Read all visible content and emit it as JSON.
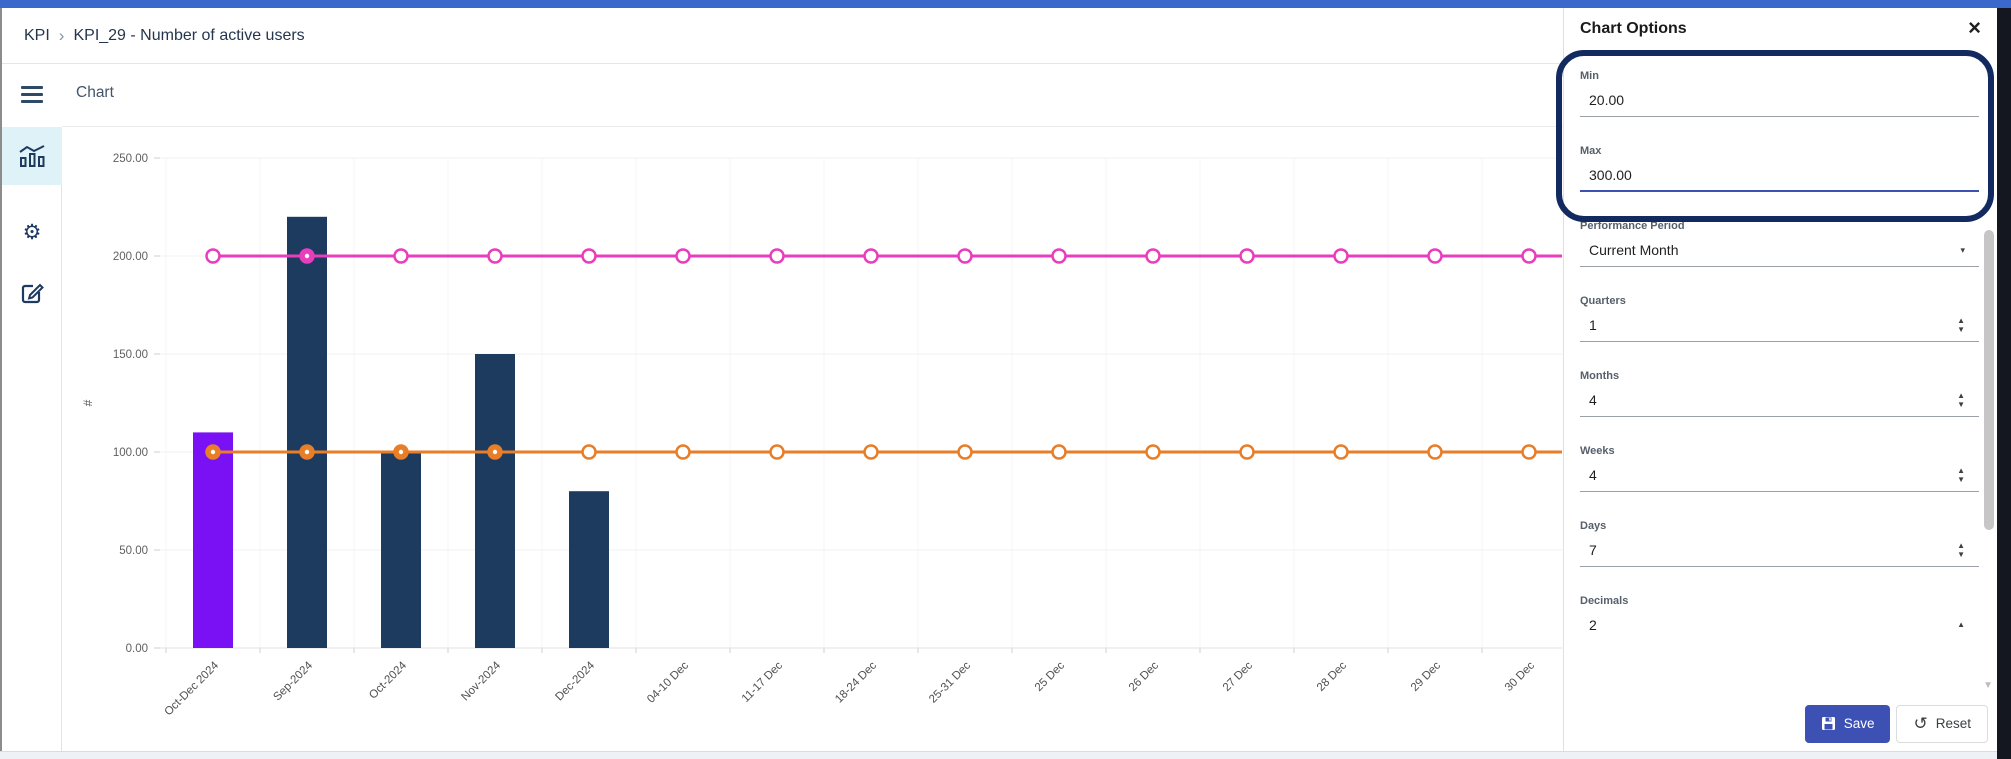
{
  "colors": {
    "top_bar": "#3a68cb",
    "accent": "#3d51b5",
    "bar": "#1d3a5f",
    "bar_highlight": "#7a10f4",
    "line_pink": "#e83dbc",
    "line_orange": "#e87e28",
    "annotation": "#132a60",
    "active_item_bg": "#def2f8"
  },
  "breadcrumb": {
    "root": "KPI",
    "separator": "›",
    "current": "KPI_29 - Number of active users"
  },
  "toolbar": {
    "title": "Chart"
  },
  "panel": {
    "title": "Chart Options",
    "close_glyph": "×",
    "fields": {
      "min": {
        "label": "Min",
        "value": "20.00"
      },
      "max": {
        "label": "Max",
        "value": "300.00"
      },
      "performance_period": {
        "label": "Performance Period",
        "value": "Current Month",
        "caret": "▾"
      },
      "quarters": {
        "label": "Quarters",
        "value": "1"
      },
      "months": {
        "label": "Months",
        "value": "4"
      },
      "weeks": {
        "label": "Weeks",
        "value": "4"
      },
      "days": {
        "label": "Days",
        "value": "7"
      },
      "decimals": {
        "label": "Decimals",
        "value": "2"
      }
    },
    "spinner": {
      "up": "▲",
      "down": "▼"
    },
    "buttons": {
      "save": "Save",
      "reset": "Reset"
    },
    "scroll_down_glyph": "▼"
  },
  "chart_data": {
    "type": "bar",
    "title": "",
    "ylabel": "#",
    "ylim": [
      0,
      250
    ],
    "ytick_step": 50,
    "ytick_labels": [
      "0.00",
      "50.00",
      "100.00",
      "150.00",
      "200.00",
      "250.00"
    ],
    "grid": true,
    "legend": "none",
    "categories": [
      "Oct-Dec 2024",
      "Sep-2024",
      "Oct-2024",
      "Nov-2024",
      "Dec-2024",
      "04-10 Dec",
      "11-17 Dec",
      "18-24 Dec",
      "25-31 Dec",
      "25 Dec",
      "26 Dec",
      "27 Dec",
      "28 Dec",
      "29 Dec",
      "30 Dec"
    ],
    "bar_values": [
      110,
      220,
      100,
      150,
      80,
      null,
      null,
      null,
      null,
      null,
      null,
      null,
      null,
      null,
      null
    ],
    "bar_colors": [
      "#7a10f4",
      "#1d3a5f",
      "#1d3a5f",
      "#1d3a5f",
      "#1d3a5f"
    ],
    "line_series": [
      {
        "name": "pink-line",
        "value": 200,
        "color": "#e83dbc",
        "filled_marker_indices": [
          1
        ]
      },
      {
        "name": "orange-line",
        "value": 100,
        "color": "#e87e28",
        "filled_marker_indices": [
          0,
          1,
          2,
          3
        ]
      }
    ]
  }
}
